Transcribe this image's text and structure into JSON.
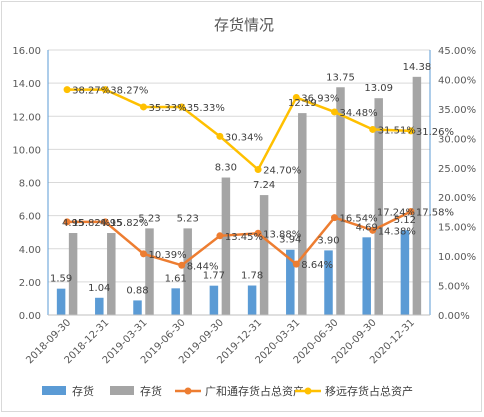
{
  "chart_data": {
    "type": "bar",
    "title": "存货情况",
    "categories": [
      "2018-09-30",
      "2018-12-31",
      "2019-03-31",
      "2019-06-30",
      "2019-09-30",
      "2019-12-31",
      "2020-03-31",
      "2020-06-30",
      "2020-09-30",
      "2020-12-31"
    ],
    "ylim": [
      0,
      16
    ],
    "yticks": [
      "0.00",
      "2.00",
      "4.00",
      "6.00",
      "8.00",
      "10.00",
      "12.00",
      "14.00",
      "16.00"
    ],
    "y2lim": [
      0,
      45
    ],
    "y2ticks": [
      "0.00%",
      "5.00%",
      "10.00%",
      "15.00%",
      "20.00%",
      "25.00%",
      "30.00%",
      "35.00%",
      "40.00%",
      "45.00%"
    ],
    "legend_position": "bottom",
    "series": [
      {
        "name": "存货",
        "type": "bar",
        "axis": "left",
        "color": "#5b9bd5",
        "values": [
          1.59,
          1.04,
          0.88,
          1.61,
          1.77,
          1.78,
          3.94,
          3.9,
          4.69,
          5.12
        ],
        "labels": [
          "1.59",
          "1.04",
          "0.88",
          "1.61",
          "1.77",
          "1.78",
          "3.94",
          "3.90",
          "4.69",
          "5.12"
        ]
      },
      {
        "name": "存货",
        "type": "bar",
        "axis": "left",
        "color": "#a5a5a5",
        "values": [
          4.95,
          4.95,
          5.23,
          5.23,
          8.3,
          7.24,
          12.19,
          13.75,
          13.09,
          14.38
        ],
        "labels": [
          "4.95",
          "4.95",
          "5.23",
          "5.23",
          "8.30",
          "7.24",
          "12.19",
          "13.75",
          "13.09",
          "14.38"
        ]
      },
      {
        "name": "广和通存货占总资产",
        "type": "line",
        "axis": "right",
        "color": "#ed7d31",
        "values": [
          15.82,
          15.82,
          10.39,
          8.44,
          13.45,
          13.88,
          8.64,
          16.54,
          14.38,
          17.58
        ],
        "labels": [
          "15.82%",
          "15.82%",
          "10.39%",
          "8.44%",
          "13.45%",
          "13.88%",
          "8.64%",
          "16.54%",
          "14.38%",
          "17.58%"
        ]
      },
      {
        "name": "移远存货占总资产",
        "type": "line",
        "axis": "right",
        "color": "#ffc000",
        "values": [
          38.27,
          38.27,
          35.33,
          35.33,
          30.34,
          24.7,
          36.93,
          34.48,
          31.51,
          31.26
        ],
        "labels": [
          "38.27%",
          "38.27%",
          "35.33%",
          "35.33%",
          "30.34%",
          "24.70%",
          "36.93%",
          "34.48%",
          "31.51%",
          "31.26%"
        ]
      }
    ],
    "extra_labels": [
      "17.24%"
    ]
  }
}
